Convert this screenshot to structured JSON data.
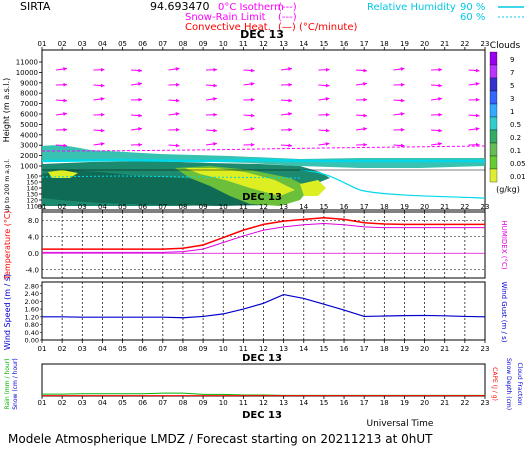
{
  "header": {
    "station": "SIRTA",
    "coords": "94.693470",
    "legend_left": [
      {
        "label": "0°C Isotherm",
        "sym": "(---)",
        "color": "#ff00ff"
      },
      {
        "label": "Snow-Rain Limit",
        "sym": "(---)",
        "color": "#ff00ff"
      },
      {
        "label": "Convective Heat.",
        "sym": "(—) (°C/minute)",
        "color": "#ff0000"
      }
    ],
    "legend_right": {
      "label": "Relative Humidity",
      "values": [
        "90 %",
        "60 %"
      ],
      "color": "#00c8e6"
    }
  },
  "x_hours": [
    "01",
    "02",
    "03",
    "04",
    "05",
    "06",
    "07",
    "08",
    "09",
    "10",
    "11",
    "12",
    "13",
    "14",
    "15",
    "16",
    "17",
    "18",
    "19",
    "20",
    "21",
    "22",
    "23"
  ],
  "date_label": "DEC 13",
  "colors": {
    "temperature": "#ff0000",
    "humidex": "#dd00dd",
    "wind_speed": "#0000cc",
    "rain": "#00b400",
    "cape": "#ff0000",
    "rh": "#00d8ea",
    "zero_iso": "#ff00ff"
  },
  "panels": {
    "clouds": {
      "ylabel": "Height (m a.s.l.)",
      "ylabel_low": "Up to 200 m a.g.l.",
      "y_ticks_upper": [
        "11000",
        "10000",
        "9000",
        "8000",
        "7000",
        "6000",
        "5000",
        "4000",
        "3000",
        "2000",
        "1000"
      ],
      "y_ticks_lower": [
        "160",
        "150",
        "140",
        "130",
        "120",
        "110"
      ],
      "colorbar_title": "Clouds",
      "colorbar_labels": [
        "9",
        "7",
        "5",
        "3",
        "1",
        "0.5",
        "0.2",
        "0.1",
        "0.05",
        "0.01"
      ],
      "colorbar_colors": [
        "#9900ee",
        "#bb33ff",
        "#3333cc",
        "#3366ff",
        "#33aaff",
        "#33cccc",
        "#33aa66",
        "#66bb55",
        "#66cc33",
        "#ddee33"
      ],
      "colorbar_unit": "(g/kg)"
    },
    "temperature": {
      "ylabel": "Temperature (°C)",
      "ylabel_right": "HUMIDEX (°C)",
      "y_ticks": [
        "8.0",
        "4.0",
        "0.0",
        "-4.0"
      ]
    },
    "wind": {
      "ylabel": "Wind Speed (m / s)",
      "ylabel_right": "Wind Gust (m / s)",
      "y_ticks": [
        "2.80",
        "2.40",
        "2.00",
        "1.60",
        "1.20",
        "0.80",
        "0.40",
        "0.00"
      ]
    },
    "precip": {
      "ylabel_1": "Rain (mm / hour)",
      "ylabel_2": "Snow (cm / hour)",
      "ylabel_right_1": "CAPE (J / g)",
      "ylabel_right_2": "Snow Depth (cm)",
      "ylabel_right_3": "Cloud Fraction"
    }
  },
  "chart_data": [
    {
      "type": "line",
      "title": "Temperature / Humidex",
      "x": [
        "01",
        "02",
        "03",
        "04",
        "05",
        "06",
        "07",
        "08",
        "09",
        "10",
        "11",
        "12",
        "13",
        "14",
        "15",
        "16",
        "17",
        "18",
        "19",
        "20",
        "21",
        "22",
        "23"
      ],
      "ylim": [
        -6,
        10
      ],
      "series": [
        {
          "name": "Temperature",
          "values": [
            1.0,
            1.0,
            1.0,
            1.0,
            1.0,
            1.0,
            1.0,
            1.2,
            2.0,
            3.8,
            5.6,
            7.0,
            7.8,
            8.2,
            8.6,
            8.2,
            7.4,
            7.1,
            7.0,
            7.0,
            7.0,
            7.0,
            7.0
          ]
        },
        {
          "name": "Humidex",
          "values": [
            0.2,
            0.2,
            0.2,
            0.2,
            0.2,
            0.2,
            0.2,
            0.4,
            1.0,
            2.6,
            4.2,
            5.6,
            6.4,
            6.9,
            7.2,
            6.9,
            6.4,
            6.2,
            6.2,
            6.2,
            6.2,
            6.2,
            6.2
          ]
        }
      ]
    },
    {
      "type": "line",
      "title": "Wind Speed",
      "x": [
        "01",
        "02",
        "03",
        "04",
        "05",
        "06",
        "07",
        "08",
        "09",
        "10",
        "11",
        "12",
        "13",
        "14",
        "15",
        "16",
        "17",
        "18",
        "19",
        "20",
        "21",
        "22",
        "23"
      ],
      "ylim": [
        0,
        3.0
      ],
      "series": [
        {
          "name": "Wind Speed",
          "values": [
            1.2,
            1.2,
            1.18,
            1.18,
            1.18,
            1.18,
            1.18,
            1.15,
            1.22,
            1.35,
            1.6,
            1.9,
            2.35,
            2.15,
            1.85,
            1.55,
            1.22,
            1.24,
            1.26,
            1.27,
            1.25,
            1.22,
            1.2
          ]
        }
      ]
    },
    {
      "type": "line",
      "title": "Rain / CAPE",
      "x": [
        "01",
        "02",
        "03",
        "04",
        "05",
        "06",
        "07",
        "08",
        "09",
        "10",
        "11",
        "12",
        "13",
        "14",
        "15",
        "16",
        "17",
        "18",
        "19",
        "20",
        "21",
        "22",
        "23"
      ],
      "ylim": [
        0,
        1
      ],
      "series": [
        {
          "name": "Rain",
          "values": [
            0.06,
            0.06,
            0.07,
            0.07,
            0.07,
            0.07,
            0.09,
            0.09,
            0.05,
            0.05,
            0.03,
            0.03,
            0.02,
            0.02,
            0.02,
            0.02,
            0.02,
            0.02,
            0.02,
            0.02,
            0.02,
            0.02,
            0.02
          ]
        },
        {
          "name": "CAPE",
          "values": [
            0.01,
            0.01,
            0.01,
            0.01,
            0.01,
            0.01,
            0.01,
            0.01,
            0.01,
            0.01,
            0.01,
            0.01,
            0.01,
            0.01,
            0.01,
            0.01,
            0.01,
            0.01,
            0.01,
            0.01,
            0.01,
            0.01,
            0.01
          ]
        }
      ]
    }
  ],
  "footer": {
    "xlabel": "Universal Time",
    "caption": "Modele Atmospherique LMDZ / Forecast starting on 20211213 at 0hUT"
  }
}
